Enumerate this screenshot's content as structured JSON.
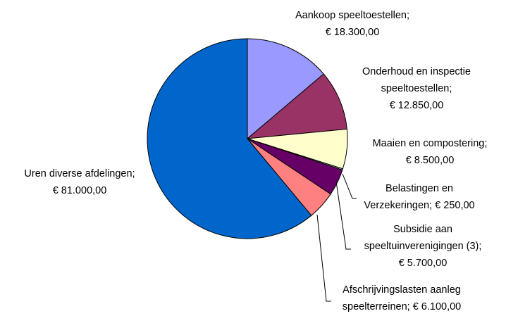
{
  "chart_data": {
    "type": "pie",
    "categories": [
      "Aankoop speeltoestellen;",
      "Onderhoud en inspectie speeltoestellen;",
      "Maaien en compostering;",
      "Belastingen en Verzekeringen;",
      "Subsidie aan speeltuinverenigingen (3);",
      "Afschrijvingslasten aanleg speelterreinen;",
      "Uren diverse afdelingen;"
    ],
    "values": [
      18300,
      12850,
      8500,
      250,
      5700,
      6100,
      81000
    ],
    "value_labels": [
      "€ 18.300,00",
      "€ 12.850,00",
      "€ 8.500,00",
      "€ 250,00",
      "€ 5.700,00",
      "€ 6.100,00",
      "€ 81.000,00"
    ],
    "colors": [
      "#9999ff",
      "#993366",
      "#ffffcc",
      "#ccffff",
      "#660066",
      "#ff8080",
      "#0066cc"
    ]
  }
}
